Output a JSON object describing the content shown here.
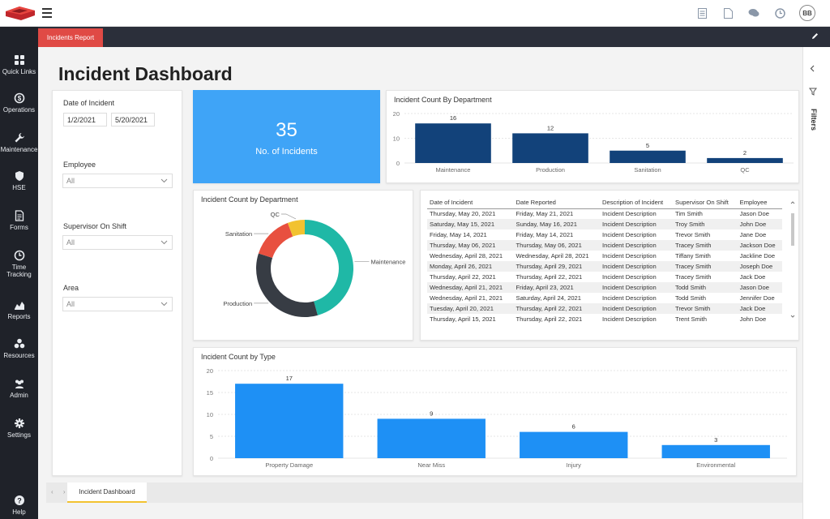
{
  "topbar": {
    "icons": [
      "document-icon",
      "file-icon",
      "chat-icon",
      "clock-icon"
    ],
    "avatar_initials": "BB"
  },
  "subbar": {
    "active_tab": "Incidents Report"
  },
  "sidebar": {
    "items": [
      {
        "label": "Quick Links",
        "icon": "grid-icon"
      },
      {
        "label": "Operations",
        "icon": "dollar-cycle-icon"
      },
      {
        "label": "Maintenance",
        "icon": "wrench-icon"
      },
      {
        "label": "HSE",
        "icon": "shield-icon"
      },
      {
        "label": "Forms",
        "icon": "form-icon"
      },
      {
        "label": "Time",
        "label2": "Tracking",
        "icon": "clock-icon"
      },
      {
        "label": "Reports",
        "icon": "chart-icon"
      },
      {
        "label": "Resources",
        "icon": "cubes-icon"
      },
      {
        "label": "Admin",
        "icon": "users-icon"
      },
      {
        "label": "Settings",
        "icon": "gear-icon"
      },
      {
        "label": "Help",
        "icon": "help-icon"
      }
    ]
  },
  "page": {
    "title": "Incident Dashboard"
  },
  "filters": {
    "date_label": "Date of Incident",
    "date_from": "1/2/2021",
    "date_to": "5/20/2021",
    "employee_label": "Employee",
    "employee_value": "All",
    "supervisor_label": "Supervisor On Shift",
    "supervisor_value": "All",
    "area_label": "Area",
    "area_value": "All"
  },
  "kpi": {
    "value": "35",
    "label": "No. of Incidents"
  },
  "dept_chart": {
    "title": "Incident Count By Department",
    "chart_data": {
      "type": "bar",
      "categories": [
        "Maintenance",
        "Production",
        "Sanitation",
        "QC"
      ],
      "values": [
        16,
        12,
        5,
        2
      ],
      "yticks": [
        0,
        10,
        20
      ],
      "ylim": [
        0,
        20
      ],
      "color": "#12427a"
    }
  },
  "donut_chart": {
    "title": "Incident Count by Department",
    "chart_data": {
      "type": "pie",
      "categories": [
        "Maintenance",
        "Production",
        "Sanitation",
        "QC"
      ],
      "values": [
        16,
        12,
        5,
        2
      ],
      "colors": [
        "#1fb8a6",
        "#373c44",
        "#e8503f",
        "#f2c230"
      ]
    }
  },
  "table": {
    "columns": [
      "Date of Incident",
      "Date Reported",
      "Description of Incident",
      "Supervisor On Shift",
      "Employee"
    ],
    "rows": [
      [
        "Thursday, May 20, 2021",
        "Friday, May 21, 2021",
        "Incident Description",
        "Tim Smith",
        "Jason Doe"
      ],
      [
        "Saturday, May 15, 2021",
        "Sunday, May 16, 2021",
        "Incident Description",
        "Troy Smith",
        "John Doe"
      ],
      [
        "Friday, May 14, 2021",
        "Friday, May 14, 2021",
        "Incident Description",
        "Trevor Smith",
        "Jane Doe"
      ],
      [
        "Thursday, May 06, 2021",
        "Thursday, May 06, 2021",
        "Incident Description",
        "Tracey Smith",
        "Jackson Doe"
      ],
      [
        "Wednesday, April 28, 2021",
        "Wednesday, April 28, 2021",
        "Incident Description",
        "Tiffany Smith",
        "Jackline Doe"
      ],
      [
        "Monday, April 26, 2021",
        "Thursday, April 29, 2021",
        "Incident Description",
        "Tracey Smith",
        "Joseph Doe"
      ],
      [
        "Thursday, April 22, 2021",
        "Thursday, April 22, 2021",
        "Incident Description",
        "Tracey Smith",
        "Jack Doe"
      ],
      [
        "Wednesday, April 21, 2021",
        "Friday, April 23, 2021",
        "Incident Description",
        "Todd Smith",
        "Jason Doe"
      ],
      [
        "Wednesday, April 21, 2021",
        "Saturday, April 24, 2021",
        "Incident Description",
        "Todd Smith",
        "Jennifer Doe"
      ],
      [
        "Tuesday, April 20, 2021",
        "Thursday, April 22, 2021",
        "Incident Description",
        "Trevor Smith",
        "Jack Doe"
      ],
      [
        "Thursday, April 15, 2021",
        "Thursday, April 22, 2021",
        "Incident Description",
        "Trent Smith",
        "John Doe"
      ]
    ]
  },
  "type_chart": {
    "title": "Incident Count by Type",
    "chart_data": {
      "type": "bar",
      "categories": [
        "Property Damage",
        "Near Miss",
        "Injury",
        "Environmental"
      ],
      "values": [
        17,
        9,
        6,
        3
      ],
      "yticks": [
        0,
        5,
        10,
        15,
        20
      ],
      "ylim": [
        0,
        20
      ],
      "color": "#1e90f5"
    }
  },
  "bottom": {
    "page_tab": "Incident Dashboard"
  },
  "filters_rail": {
    "label": "Filters"
  }
}
